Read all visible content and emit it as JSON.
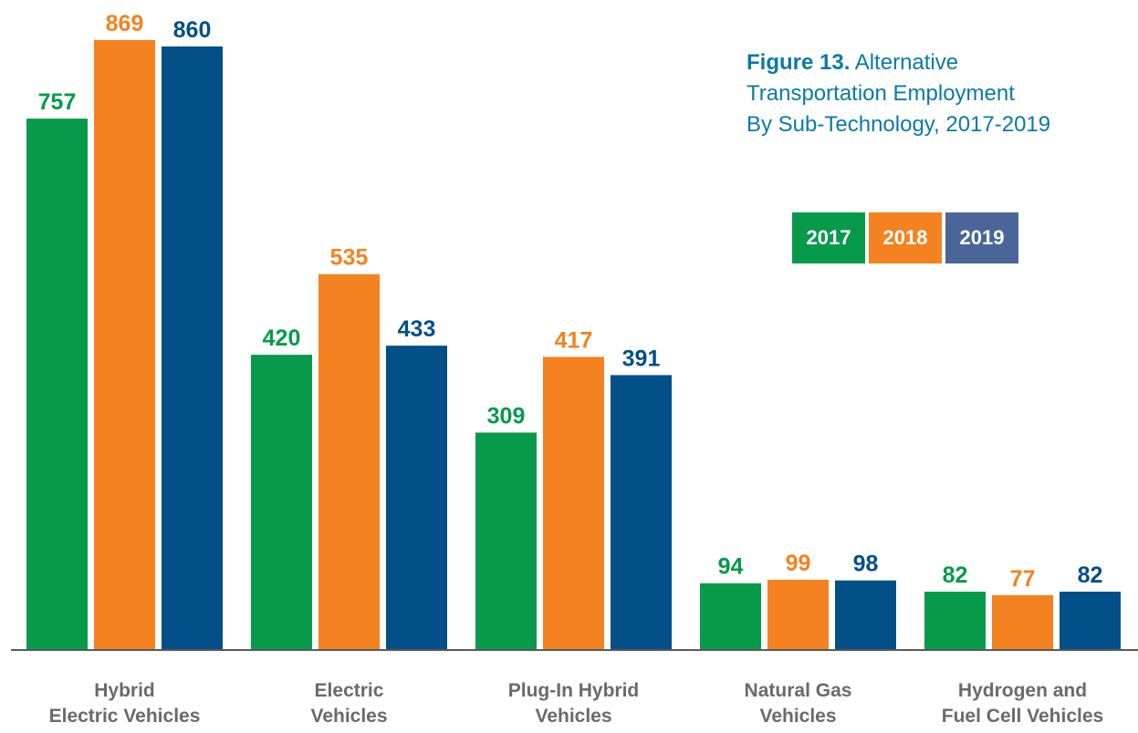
{
  "title": {
    "bold": "Figure 13.",
    "line1": "Alternative",
    "line2": "Transportation Employment",
    "line3": "By Sub-Technology, 2017-2019"
  },
  "legend": [
    "2017",
    "2018",
    "2019"
  ],
  "colors": [
    "#079a4a",
    "#f48220",
    "#034f87"
  ],
  "legend_colors": [
    "#079a4a",
    "#f48220",
    "#4a6598"
  ],
  "axis_color": "#5a5a5a",
  "category_label_color": "#6a6a6a",
  "chart_data": {
    "type": "bar",
    "title": "Figure 13. Alternative Transportation Employment By Sub-Technology, 2017-2019",
    "xlabel": "",
    "ylabel": "",
    "categories": [
      [
        "Hybrid",
        "Electric Vehicles"
      ],
      [
        "Electric",
        "Vehicles"
      ],
      [
        "Plug-In Hybrid",
        "Vehicles"
      ],
      [
        "Natural Gas",
        "Vehicles"
      ],
      [
        "Hydrogen and",
        "Fuel Cell Vehicles"
      ]
    ],
    "series": [
      {
        "name": "2017",
        "values": [
          757,
          420,
          309,
          94,
          82
        ]
      },
      {
        "name": "2018",
        "values": [
          869,
          535,
          417,
          99,
          77
        ]
      },
      {
        "name": "2019",
        "values": [
          860,
          433,
          391,
          98,
          82
        ]
      }
    ],
    "ylim": [
      0,
      869
    ],
    "grid": false,
    "legend_position": "right",
    "data_labels": true
  }
}
